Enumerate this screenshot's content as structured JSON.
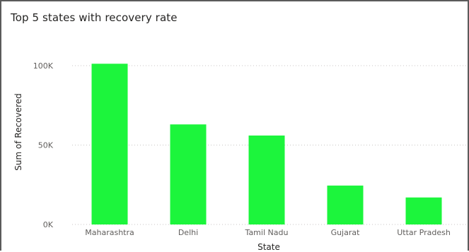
{
  "visual": {
    "title": "Top 5 states with recovery rate"
  },
  "chart_data": {
    "type": "bar",
    "title": "Top 5 states with recovery rate",
    "xlabel": "State",
    "ylabel": "Sum of Recovered",
    "categories": [
      "Maharashtra",
      "Delhi",
      "Tamil Nadu",
      "Gujarat",
      "Uttar Pradesh"
    ],
    "values": [
      101200,
      63000,
      56000,
      24500,
      17000
    ],
    "ylim": [
      0,
      100000
    ],
    "yticks": [
      0,
      50000,
      100000
    ],
    "ytick_labels": [
      "0K",
      "50K",
      "100K"
    ],
    "grid": "horizontal-dotted",
    "bar_color": "#1cf53c"
  }
}
